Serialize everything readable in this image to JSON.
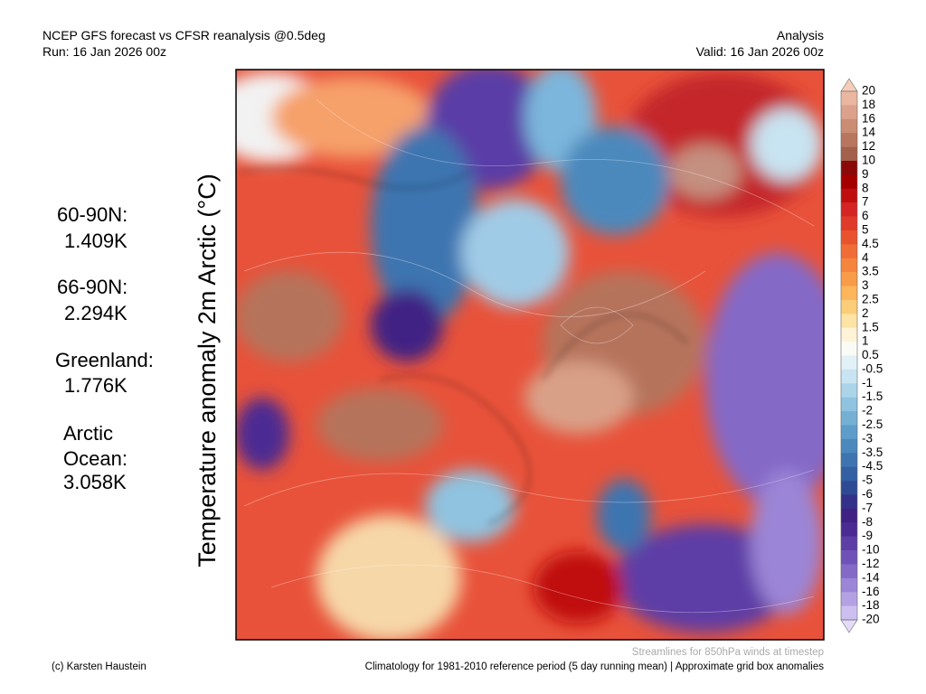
{
  "header": {
    "left": [
      "NCEP GFS forecast vs CFSR reanalysis @0.5deg",
      "Run: 16 Jan 2026 00z"
    ],
    "right": [
      "Analysis",
      "Valid: 16 Jan 2026 00z"
    ]
  },
  "vertical_title": "Temperature anomaly 2m Arctic (°C)",
  "stats": [
    {
      "label": "60-90N:",
      "value": "1.409K"
    },
    {
      "label": "66-90N:",
      "value": "2.294K"
    },
    {
      "label": "Greenland:",
      "value": "1.776K"
    },
    {
      "label": [
        "Arctic",
        "Ocean:"
      ],
      "value": "3.058K"
    }
  ],
  "colorbar": {
    "labels": [
      "20",
      "18",
      "16",
      "14",
      "12",
      "10",
      "9",
      "8",
      "7",
      "6",
      "5",
      "4.5",
      "4",
      "3.5",
      "3",
      "2.5",
      "2",
      "1.5",
      "1",
      "0.5",
      "-0.5",
      "-1",
      "-1.5",
      "-2",
      "-2.5",
      "-3",
      "-3.5",
      "-4.5",
      "-5",
      "-6",
      "-7",
      "-8",
      "-9",
      "-10",
      "-12",
      "-14",
      "-16",
      "-18",
      "-20"
    ],
    "colors": [
      "#f6cdb9",
      "#eab6a0",
      "#dba18a",
      "#cb8c74",
      "#b8765f",
      "#a3604c",
      "#8a0a0a",
      "#a40000",
      "#c00e0e",
      "#d42424",
      "#e03a2a",
      "#e8532e",
      "#f06c36",
      "#f5843e",
      "#f89c48",
      "#fbb55a",
      "#fccd78",
      "#fde3a4",
      "#fef3d6",
      "#fbfbf5",
      "#e2f0f8",
      "#c8e3f1",
      "#acd4e9",
      "#8fc3df",
      "#74b0d4",
      "#5e9dc9",
      "#4b89bd",
      "#3e74b0",
      "#335fa3",
      "#2d4b95",
      "#33318a",
      "#3f2184",
      "#4c2a93",
      "#5d3da6",
      "#6f52b7",
      "#8469c7",
      "#9b85d6",
      "#b4a1e3",
      "#ccbff0",
      "#e3dbf9"
    ]
  },
  "footer": {
    "note": "Streamlines for 850hPa winds at timestep",
    "credit": "(c) Karsten Haustein",
    "climatology": "Climatology for 1981-2010 reference period (5 day running mean) | Approximate grid box anomalies"
  }
}
